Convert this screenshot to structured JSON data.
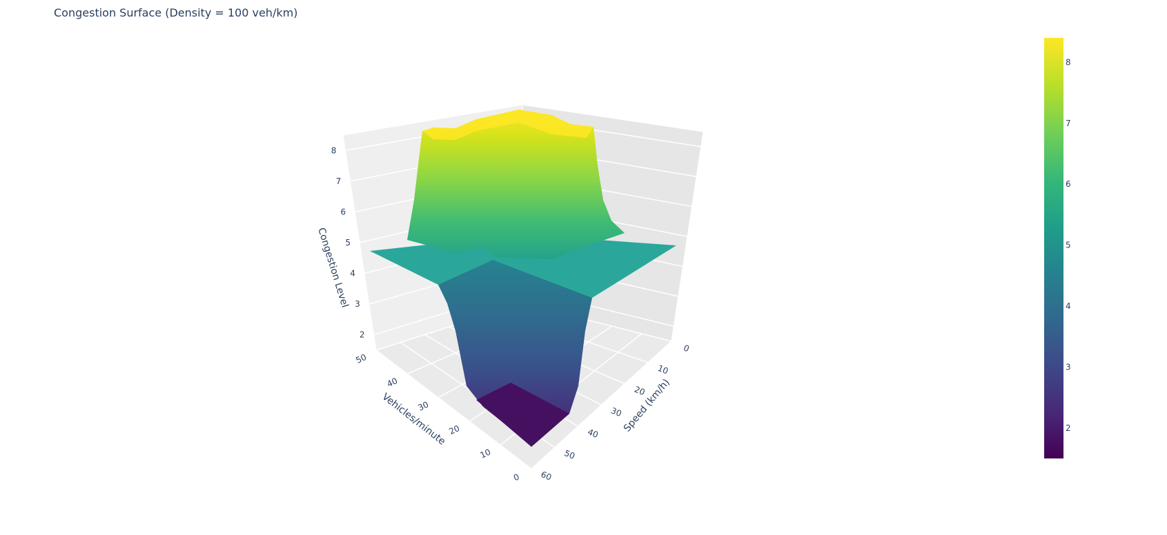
{
  "chart_data": {
    "type": "surface",
    "title": "Congestion Surface (Density = 100 veh/km)",
    "x_axis": {
      "label": "Speed (km/h)",
      "range": [
        0,
        60
      ],
      "ticks": [
        "0",
        "10",
        "20",
        "30",
        "40",
        "50",
        "60"
      ]
    },
    "y_axis": {
      "label": "Vehicles/minute",
      "range": [
        0,
        50
      ],
      "ticks": [
        "0",
        "10",
        "20",
        "30",
        "40",
        "50"
      ]
    },
    "z_axis": {
      "label": "Congestion Level",
      "range": [
        1.5,
        8.5
      ],
      "ticks": [
        "2",
        "3",
        "4",
        "5",
        "6",
        "7",
        "8"
      ]
    },
    "colorbar": {
      "ticks": [
        "2",
        "3",
        "4",
        "5",
        "6",
        "7",
        "8"
      ],
      "range": [
        1.5,
        8.4
      ],
      "colorscale": "Viridis"
    },
    "surface": {
      "base_level": 5.0,
      "regions": [
        {
          "speed": [
            0,
            30
          ],
          "vehicles_per_minute": [
            25,
            50
          ],
          "level": 8.4
        },
        {
          "speed": [
            30,
            60
          ],
          "vehicles_per_minute": [
            0,
            25
          ],
          "level": 1.5
        }
      ]
    },
    "grid": true
  }
}
